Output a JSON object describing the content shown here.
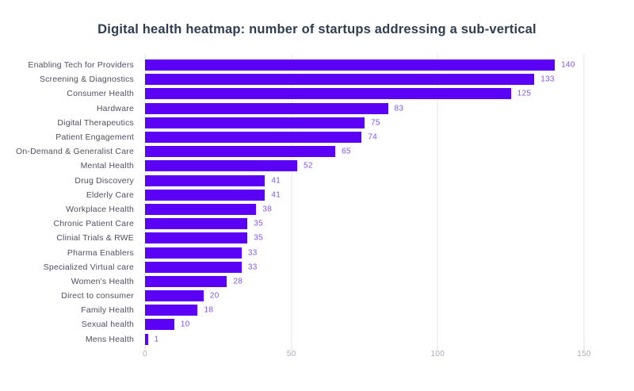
{
  "chart_data": {
    "type": "bar",
    "orientation": "horizontal",
    "title": "Digital health heatmap: number of startups addressing a sub-vertical",
    "categories": [
      "Enabling Tech for Providers",
      "Screening & Diagnostics",
      "Consumer Health",
      "Hardware",
      "Digital Therapeutics",
      "Patient Engagement",
      "On-Demand & Generalist Care",
      "Mental Health",
      "Drug Discovery",
      "Elderly Care",
      "Workplace Health",
      "Chronic Patient Care",
      "Clinial Trials & RWE",
      "Pharma Enablers",
      "Specialized Virtual care",
      "Women's Health",
      "Direct to consumer",
      "Family Health",
      "Sexual health",
      "Mens Health"
    ],
    "values": [
      140,
      133,
      125,
      83,
      75,
      74,
      65,
      52,
      41,
      41,
      38,
      35,
      35,
      33,
      33,
      28,
      20,
      18,
      10,
      1
    ],
    "xlabel": "",
    "ylabel": "",
    "xlim": [
      0,
      150
    ],
    "xticks": [
      0,
      50,
      100,
      150
    ],
    "grid": "vertical-only",
    "legend": "none",
    "colors": {
      "bar": "#5b01f5",
      "value_label": "#8256e8",
      "category_label": "#4f4f62",
      "tick_label": "#a9adb8",
      "gridline": "#e6e6ec",
      "tickmark": "#d5d5dd",
      "title": "#2e3e50",
      "background": "#ffffff"
    }
  }
}
